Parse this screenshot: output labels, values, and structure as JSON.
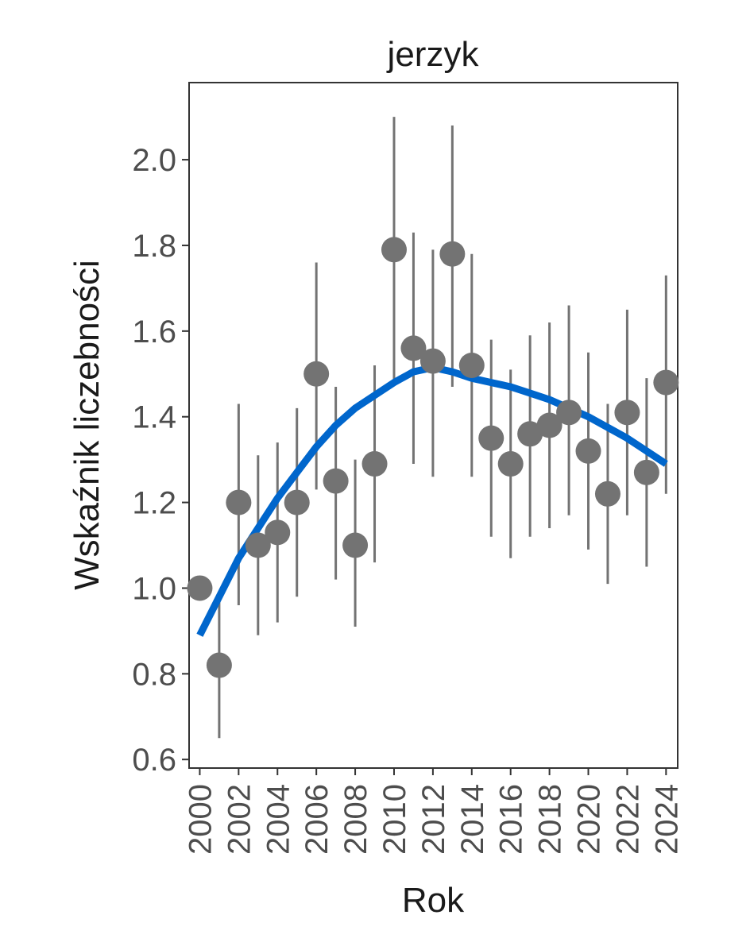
{
  "chart_data": {
    "type": "scatter",
    "title": "jerzyk",
    "xlabel": "Rok",
    "ylabel": "Wskaźnik liczebności",
    "xlim": [
      1999.45,
      2024.6
    ],
    "ylim": [
      0.58,
      2.18
    ],
    "x_ticks": [
      2000,
      2002,
      2004,
      2006,
      2008,
      2010,
      2012,
      2014,
      2016,
      2018,
      2020,
      2022,
      2024
    ],
    "x_tick_labels": [
      "2000",
      "2002",
      "2004",
      "2006",
      "2008",
      "2010",
      "2012",
      "2014",
      "2016",
      "2018",
      "2020",
      "2022",
      "2024"
    ],
    "y_ticks": [
      0.6,
      0.8,
      1.0,
      1.2,
      1.4,
      1.6,
      1.8,
      2.0
    ],
    "y_tick_labels": [
      "0.6",
      "0.8",
      "1.0",
      "1.2",
      "1.4",
      "1.6",
      "1.8",
      "2.0"
    ],
    "grid": false,
    "point_color": "#737373",
    "errorbar_color": "#737373",
    "trend_color": "#0066cc",
    "points": [
      {
        "x": 2000,
        "y": 1.0,
        "lo": null,
        "hi": null
      },
      {
        "x": 2001,
        "y": 0.82,
        "lo": 0.65,
        "hi": 0.99
      },
      {
        "x": 2002,
        "y": 1.2,
        "lo": 0.96,
        "hi": 1.43
      },
      {
        "x": 2003,
        "y": 1.1,
        "lo": 0.89,
        "hi": 1.31
      },
      {
        "x": 2004,
        "y": 1.13,
        "lo": 0.92,
        "hi": 1.34
      },
      {
        "x": 2005,
        "y": 1.2,
        "lo": 0.98,
        "hi": 1.42
      },
      {
        "x": 2006,
        "y": 1.5,
        "lo": 1.23,
        "hi": 1.76
      },
      {
        "x": 2007,
        "y": 1.25,
        "lo": 1.02,
        "hi": 1.47
      },
      {
        "x": 2008,
        "y": 1.1,
        "lo": 0.91,
        "hi": 1.3
      },
      {
        "x": 2009,
        "y": 1.29,
        "lo": 1.06,
        "hi": 1.52
      },
      {
        "x": 2010,
        "y": 1.79,
        "lo": 1.48,
        "hi": 2.1
      },
      {
        "x": 2011,
        "y": 1.56,
        "lo": 1.29,
        "hi": 1.83
      },
      {
        "x": 2012,
        "y": 1.53,
        "lo": 1.26,
        "hi": 1.79
      },
      {
        "x": 2013,
        "y": 1.78,
        "lo": 1.47,
        "hi": 2.08
      },
      {
        "x": 2014,
        "y": 1.52,
        "lo": 1.26,
        "hi": 1.78
      },
      {
        "x": 2015,
        "y": 1.35,
        "lo": 1.12,
        "hi": 1.58
      },
      {
        "x": 2016,
        "y": 1.29,
        "lo": 1.07,
        "hi": 1.51
      },
      {
        "x": 2017,
        "y": 1.36,
        "lo": 1.12,
        "hi": 1.59
      },
      {
        "x": 2018,
        "y": 1.38,
        "lo": 1.14,
        "hi": 1.62
      },
      {
        "x": 2019,
        "y": 1.41,
        "lo": 1.17,
        "hi": 1.66
      },
      {
        "x": 2020,
        "y": 1.32,
        "lo": 1.09,
        "hi": 1.55
      },
      {
        "x": 2021,
        "y": 1.22,
        "lo": 1.01,
        "hi": 1.43
      },
      {
        "x": 2022,
        "y": 1.41,
        "lo": 1.17,
        "hi": 1.65
      },
      {
        "x": 2023,
        "y": 1.27,
        "lo": 1.05,
        "hi": 1.49
      },
      {
        "x": 2024,
        "y": 1.48,
        "lo": 1.22,
        "hi": 1.73
      }
    ],
    "trend": [
      {
        "x": 2000,
        "y": 0.89
      },
      {
        "x": 2001,
        "y": 0.98
      },
      {
        "x": 2002,
        "y": 1.07
      },
      {
        "x": 2003,
        "y": 1.14
      },
      {
        "x": 2004,
        "y": 1.21
      },
      {
        "x": 2005,
        "y": 1.27
      },
      {
        "x": 2006,
        "y": 1.33
      },
      {
        "x": 2007,
        "y": 1.38
      },
      {
        "x": 2008,
        "y": 1.42
      },
      {
        "x": 2009,
        "y": 1.45
      },
      {
        "x": 2010,
        "y": 1.48
      },
      {
        "x": 2011,
        "y": 1.505
      },
      {
        "x": 2012,
        "y": 1.515
      },
      {
        "x": 2013,
        "y": 1.505
      },
      {
        "x": 2014,
        "y": 1.49
      },
      {
        "x": 2015,
        "y": 1.48
      },
      {
        "x": 2016,
        "y": 1.47
      },
      {
        "x": 2017,
        "y": 1.455
      },
      {
        "x": 2018,
        "y": 1.44
      },
      {
        "x": 2019,
        "y": 1.42
      },
      {
        "x": 2020,
        "y": 1.4
      },
      {
        "x": 2021,
        "y": 1.375
      },
      {
        "x": 2022,
        "y": 1.35
      },
      {
        "x": 2023,
        "y": 1.32
      },
      {
        "x": 2024,
        "y": 1.29
      }
    ]
  }
}
